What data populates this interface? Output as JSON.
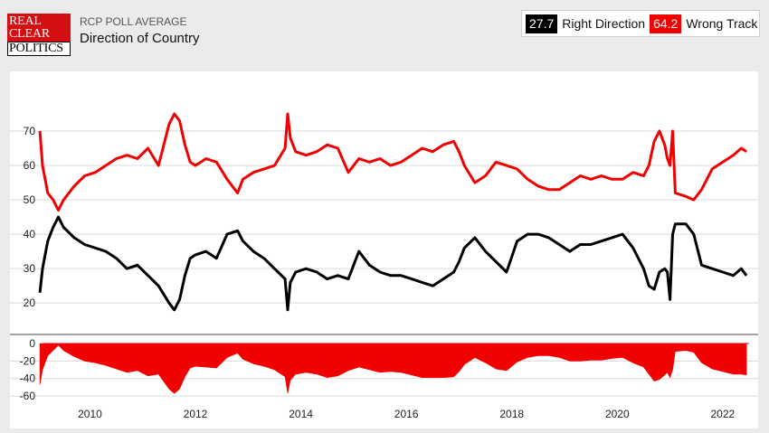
{
  "header": {
    "logo_lines": [
      "REAL",
      "CLEAR",
      "POLITICS"
    ],
    "supertitle": "RCP POLL AVERAGE",
    "title": "Direction of Country"
  },
  "legend": {
    "right_value": "27.7",
    "right_label": "Right Direction",
    "wrong_value": "64.2",
    "wrong_label": "Wrong Track"
  },
  "colors": {
    "right": "#000000",
    "wrong": "#f00000",
    "spread": "#f00000"
  },
  "chart_data": {
    "type": "line",
    "x_ticks": [
      "2010",
      "2012",
      "2014",
      "2016",
      "2018",
      "2020",
      "2022"
    ],
    "xlim": [
      2009.1,
      2022.5
    ],
    "main_panel": {
      "ylim": [
        14,
        80
      ],
      "y_ticks": [
        20,
        30,
        40,
        50,
        60,
        70
      ],
      "grid": true,
      "series": [
        {
          "name": "Wrong Track",
          "x": [
            2009.05,
            2009.1,
            2009.2,
            2009.3,
            2009.4,
            2009.5,
            2009.7,
            2009.9,
            2010.1,
            2010.3,
            2010.5,
            2010.7,
            2010.9,
            2011.1,
            2011.3,
            2011.5,
            2011.6,
            2011.7,
            2011.8,
            2011.9,
            2012.0,
            2012.2,
            2012.4,
            2012.6,
            2012.8,
            2012.9,
            2013.1,
            2013.3,
            2013.5,
            2013.7,
            2013.75,
            2013.8,
            2013.9,
            2014.1,
            2014.3,
            2014.5,
            2014.7,
            2014.9,
            2015.1,
            2015.3,
            2015.5,
            2015.7,
            2015.9,
            2016.1,
            2016.3,
            2016.5,
            2016.7,
            2016.9,
            2017.0,
            2017.1,
            2017.3,
            2017.5,
            2017.7,
            2017.9,
            2018.1,
            2018.3,
            2018.5,
            2018.7,
            2018.9,
            2019.1,
            2019.3,
            2019.5,
            2019.7,
            2019.9,
            2020.1,
            2020.3,
            2020.5,
            2020.6,
            2020.7,
            2020.8,
            2020.9,
            2020.95,
            2021.0,
            2021.05,
            2021.1,
            2021.3,
            2021.45,
            2021.6,
            2021.8,
            2022.0,
            2022.2,
            2022.35,
            2022.45
          ],
          "values": [
            70,
            60,
            52,
            50,
            47,
            50,
            54,
            57,
            58,
            60,
            62,
            63,
            62,
            65,
            60,
            72,
            75,
            73,
            66,
            61,
            60,
            62,
            61,
            56,
            52,
            56,
            58,
            59,
            60,
            65,
            75,
            68,
            64,
            63,
            64,
            66,
            65,
            58,
            62,
            61,
            62,
            60,
            61,
            63,
            65,
            64,
            66,
            67,
            64,
            60,
            55,
            57,
            61,
            60,
            59,
            56,
            54,
            53,
            53,
            55,
            57,
            56,
            57,
            56,
            56,
            58,
            57,
            60,
            67,
            70,
            66,
            62,
            60,
            70,
            52,
            51,
            50,
            53,
            59,
            61,
            63,
            65,
            64
          ]
        },
        {
          "name": "Right Direction",
          "x": [
            2009.05,
            2009.1,
            2009.2,
            2009.3,
            2009.4,
            2009.5,
            2009.7,
            2009.9,
            2010.1,
            2010.3,
            2010.5,
            2010.7,
            2010.9,
            2011.1,
            2011.3,
            2011.5,
            2011.6,
            2011.7,
            2011.8,
            2011.9,
            2012.0,
            2012.2,
            2012.4,
            2012.6,
            2012.8,
            2012.9,
            2013.1,
            2013.3,
            2013.5,
            2013.7,
            2013.75,
            2013.8,
            2013.9,
            2014.1,
            2014.3,
            2014.5,
            2014.7,
            2014.9,
            2015.1,
            2015.3,
            2015.5,
            2015.7,
            2015.9,
            2016.1,
            2016.3,
            2016.5,
            2016.7,
            2016.9,
            2017.0,
            2017.1,
            2017.3,
            2017.5,
            2017.7,
            2017.9,
            2018.1,
            2018.3,
            2018.5,
            2018.7,
            2018.9,
            2019.1,
            2019.3,
            2019.5,
            2019.7,
            2019.9,
            2020.1,
            2020.3,
            2020.5,
            2020.6,
            2020.7,
            2020.8,
            2020.9,
            2020.95,
            2021.0,
            2021.05,
            2021.1,
            2021.3,
            2021.45,
            2021.6,
            2021.8,
            2022.0,
            2022.2,
            2022.35,
            2022.45
          ],
          "values": [
            23,
            30,
            38,
            42,
            45,
            42,
            39,
            37,
            36,
            35,
            33,
            30,
            31,
            28,
            25,
            20,
            18,
            21,
            28,
            33,
            34,
            35,
            33,
            40,
            41,
            38,
            35,
            33,
            30,
            27,
            18,
            26,
            29,
            30,
            29,
            27,
            28,
            27,
            35,
            31,
            29,
            28,
            28,
            27,
            26,
            25,
            27,
            29,
            32,
            36,
            39,
            35,
            32,
            29,
            38,
            40,
            40,
            39,
            37,
            35,
            37,
            37,
            38,
            39,
            40,
            36,
            30,
            25,
            24,
            29,
            30,
            29,
            21,
            40,
            43,
            43,
            40,
            31,
            30,
            29,
            28,
            30,
            28
          ]
        }
      ]
    },
    "spread_panel": {
      "ylim": [
        -62,
        0
      ],
      "y_ticks": [
        0,
        -20,
        -40,
        -60
      ],
      "series": [
        {
          "name": "Spread",
          "type": "area",
          "x": [
            2009.05,
            2009.1,
            2009.2,
            2009.3,
            2009.4,
            2009.5,
            2009.7,
            2009.9,
            2010.1,
            2010.3,
            2010.5,
            2010.7,
            2010.9,
            2011.1,
            2011.3,
            2011.5,
            2011.6,
            2011.7,
            2011.8,
            2011.9,
            2012.0,
            2012.2,
            2012.4,
            2012.6,
            2012.8,
            2012.9,
            2013.1,
            2013.3,
            2013.5,
            2013.7,
            2013.75,
            2013.8,
            2013.9,
            2014.1,
            2014.3,
            2014.5,
            2014.7,
            2014.9,
            2015.1,
            2015.3,
            2015.5,
            2015.7,
            2015.9,
            2016.1,
            2016.3,
            2016.5,
            2016.7,
            2016.9,
            2017.0,
            2017.1,
            2017.3,
            2017.5,
            2017.7,
            2017.9,
            2018.1,
            2018.3,
            2018.5,
            2018.7,
            2018.9,
            2019.1,
            2019.3,
            2019.5,
            2019.7,
            2019.9,
            2020.1,
            2020.3,
            2020.5,
            2020.6,
            2020.7,
            2020.8,
            2020.9,
            2020.95,
            2021.0,
            2021.05,
            2021.1,
            2021.3,
            2021.45,
            2021.6,
            2021.8,
            2022.0,
            2022.2,
            2022.35,
            2022.45
          ],
          "values": [
            -47,
            -30,
            -14,
            -8,
            -2,
            -8,
            -15,
            -20,
            -22,
            -25,
            -29,
            -33,
            -31,
            -37,
            -35,
            -52,
            -57,
            -52,
            -38,
            -28,
            -26,
            -27,
            -28,
            -16,
            -11,
            -18,
            -23,
            -26,
            -30,
            -38,
            -57,
            -42,
            -35,
            -33,
            -35,
            -39,
            -37,
            -31,
            -27,
            -30,
            -33,
            -32,
            -33,
            -36,
            -39,
            -39,
            -39,
            -38,
            -32,
            -24,
            -16,
            -22,
            -29,
            -31,
            -21,
            -16,
            -14,
            -14,
            -16,
            -20,
            -20,
            -19,
            -19,
            -17,
            -16,
            -22,
            -27,
            -35,
            -43,
            -41,
            -36,
            -33,
            -39,
            -30,
            -9,
            -8,
            -10,
            -22,
            -29,
            -32,
            -35,
            -35,
            -36
          ]
        }
      ]
    }
  }
}
